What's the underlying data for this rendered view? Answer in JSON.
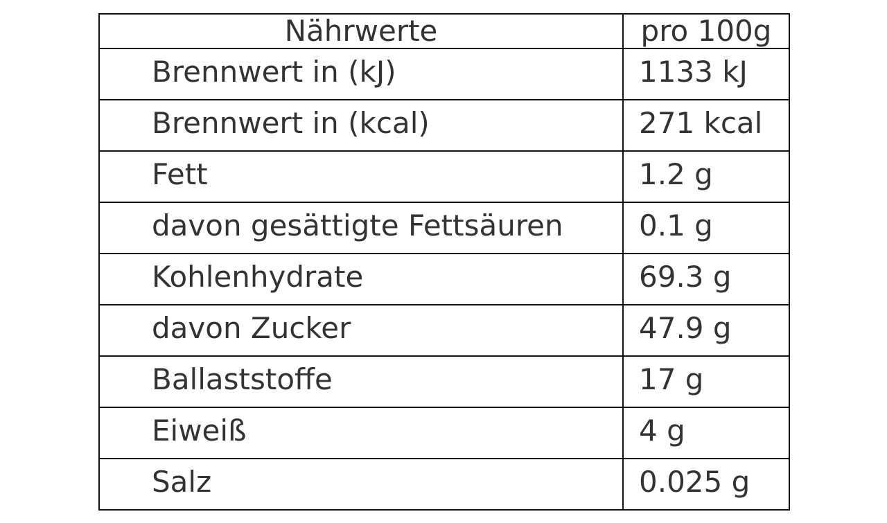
{
  "table": {
    "header": [
      "Nährwerte",
      "pro 100g"
    ],
    "rows": [
      [
        "Brennwert in (kJ)",
        "1133 kJ"
      ],
      [
        "Brennwert in (kcal)",
        "271 kcal"
      ],
      [
        "Fett",
        "1.2 g"
      ],
      [
        "davon gesättigte Fettsäuren",
        "0.1 g"
      ],
      [
        "Kohlenhydrate",
        "69.3 g"
      ],
      [
        "davon Zucker",
        "47.9 g"
      ],
      [
        "Ballaststoffe",
        "17 g"
      ],
      [
        "Eiweiß",
        "4 g"
      ],
      [
        "Salz",
        "0.025 g"
      ]
    ]
  }
}
